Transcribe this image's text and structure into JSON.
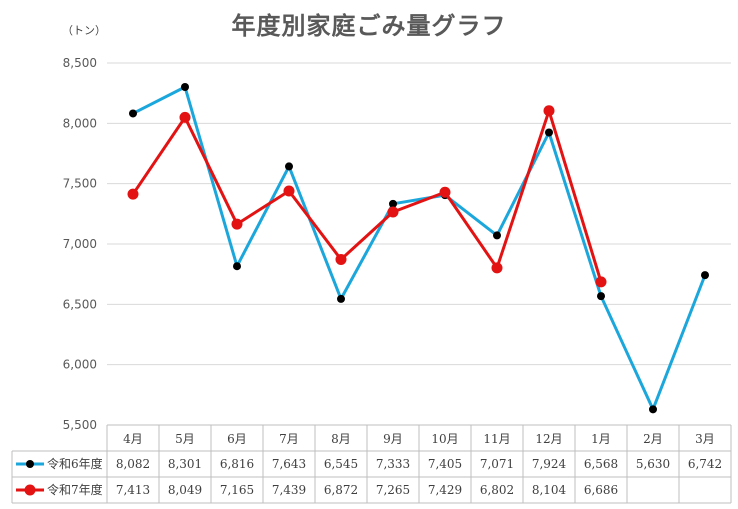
{
  "chart_data": {
    "type": "line",
    "title": "年度別家庭ごみ量グラフ",
    "unit_label": "（トン）",
    "ylim": [
      5500,
      8500
    ],
    "yticks": [
      5500,
      6000,
      6500,
      7000,
      7500,
      8000,
      8500
    ],
    "ytick_labels": [
      "5,500",
      "6,000",
      "6,500",
      "7,000",
      "7,500",
      "8,000",
      "8,500"
    ],
    "grid": true,
    "categories": [
      "4月",
      "5月",
      "6月",
      "7月",
      "8月",
      "9月",
      "10月",
      "11月",
      "12月",
      "1月",
      "2月",
      "3月"
    ],
    "series": [
      {
        "name": "令和6年度",
        "color": "#1ba7dc",
        "marker_color": "#000000",
        "values": [
          8082,
          8301,
          6816,
          7643,
          6545,
          7333,
          7405,
          7071,
          7924,
          6568,
          5630,
          6742
        ],
        "labels": [
          "8,082",
          "8,301",
          "6,816",
          "7,643",
          "6,545",
          "7,333",
          "7,405",
          "7,071",
          "7,924",
          "6,568",
          "5,630",
          "6,742"
        ]
      },
      {
        "name": "令和7年度",
        "color": "#e31313",
        "marker_color": "#e31313",
        "values": [
          7413,
          8049,
          7165,
          7439,
          6872,
          7265,
          7429,
          6802,
          8104,
          6686,
          null,
          null
        ],
        "labels": [
          "7,413",
          "8,049",
          "7,165",
          "7,439",
          "6,872",
          "7,265",
          "7,429",
          "6,802",
          "8,104",
          "6,686",
          "",
          ""
        ]
      }
    ],
    "legend_placement": "data-table-left"
  }
}
